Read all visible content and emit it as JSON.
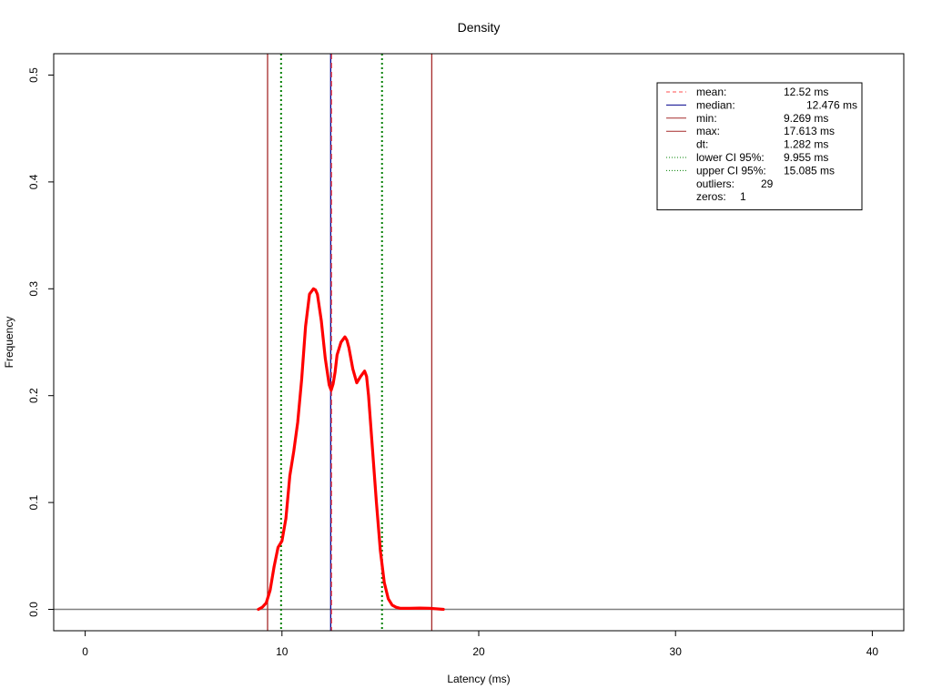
{
  "chart_data": {
    "type": "line",
    "title": "Density",
    "xlabel": "Latency (ms)",
    "ylabel": "Frequency",
    "xlim": [
      -1.6,
      41.6
    ],
    "ylim": [
      -0.02,
      0.52
    ],
    "x_ticks": [
      0,
      10,
      20,
      30,
      40
    ],
    "y_ticks": [
      0.0,
      0.1,
      0.2,
      0.3,
      0.4,
      0.5
    ],
    "x_tick_labels": [
      "0",
      "10",
      "20",
      "30",
      "40"
    ],
    "y_tick_labels": [
      "0.0",
      "0.1",
      "0.2",
      "0.3",
      "0.4",
      "0.5"
    ],
    "grid": false,
    "legend_position": "top-right",
    "baseline": 0,
    "series": [
      {
        "color": "#ff0000",
        "x": [
          8.8,
          9.0,
          9.2,
          9.4,
          9.6,
          9.8,
          10.0,
          10.2,
          10.4,
          10.6,
          10.8,
          11.0,
          11.2,
          11.4,
          11.6,
          11.7,
          11.8,
          12.0,
          12.2,
          12.4,
          12.5,
          12.6,
          12.7,
          12.8,
          13.0,
          13.2,
          13.3,
          13.4,
          13.6,
          13.8,
          14.0,
          14.2,
          14.3,
          14.4,
          14.6,
          14.8,
          15.0,
          15.2,
          15.4,
          15.6,
          15.8,
          16.0,
          16.5,
          17.0,
          17.5,
          18.2
        ],
        "y": [
          0.0,
          0.002,
          0.006,
          0.018,
          0.04,
          0.058,
          0.064,
          0.085,
          0.125,
          0.148,
          0.175,
          0.215,
          0.265,
          0.295,
          0.3,
          0.299,
          0.295,
          0.27,
          0.235,
          0.21,
          0.205,
          0.211,
          0.222,
          0.238,
          0.25,
          0.255,
          0.252,
          0.245,
          0.225,
          0.212,
          0.218,
          0.223,
          0.218,
          0.2,
          0.15,
          0.1,
          0.055,
          0.025,
          0.01,
          0.004,
          0.002,
          0.001,
          0.001,
          0.0012,
          0.001,
          0.0
        ]
      }
    ],
    "reference_lines": [
      {
        "label": "mean",
        "x": 12.52,
        "color": "#ff4d4d",
        "style": "dashed"
      },
      {
        "label": "median",
        "x": 12.476,
        "color": "#00008b",
        "style": "solid"
      },
      {
        "label": "min",
        "x": 9.269,
        "color": "#a52a2a",
        "style": "solid"
      },
      {
        "label": "max",
        "x": 17.613,
        "color": "#a52a2a",
        "style": "solid"
      },
      {
        "label": "lower CI 95%",
        "x": 9.955,
        "color": "#008000",
        "style": "dotted"
      },
      {
        "label": "upper CI 95%",
        "x": 15.085,
        "color": "#008000",
        "style": "dotted"
      }
    ],
    "legend": [
      {
        "label": "mean:",
        "value": "12.52 ms",
        "color": "#ff4d4d",
        "style": "dashed"
      },
      {
        "label": "median:",
        "value": "12.476 ms",
        "color": "#00008b",
        "style": "solid"
      },
      {
        "label": "min:",
        "value": "9.269 ms",
        "color": "#a52a2a",
        "style": "solid"
      },
      {
        "label": "max:",
        "value": "17.613 ms",
        "color": "#a52a2a",
        "style": "solid"
      },
      {
        "label": "dt:",
        "value": "1.282 ms",
        "color": "",
        "style": "none"
      },
      {
        "label": "lower CI 95%:",
        "value": "9.955 ms",
        "color": "#008000",
        "style": "dotted"
      },
      {
        "label": "upper CI 95%:",
        "value": "15.085 ms",
        "color": "#008000",
        "style": "dotted"
      },
      {
        "label": "outliers:",
        "value": "29",
        "color": "",
        "style": "none"
      },
      {
        "label": "zeros:",
        "value": "1",
        "color": "",
        "style": "none"
      }
    ]
  }
}
